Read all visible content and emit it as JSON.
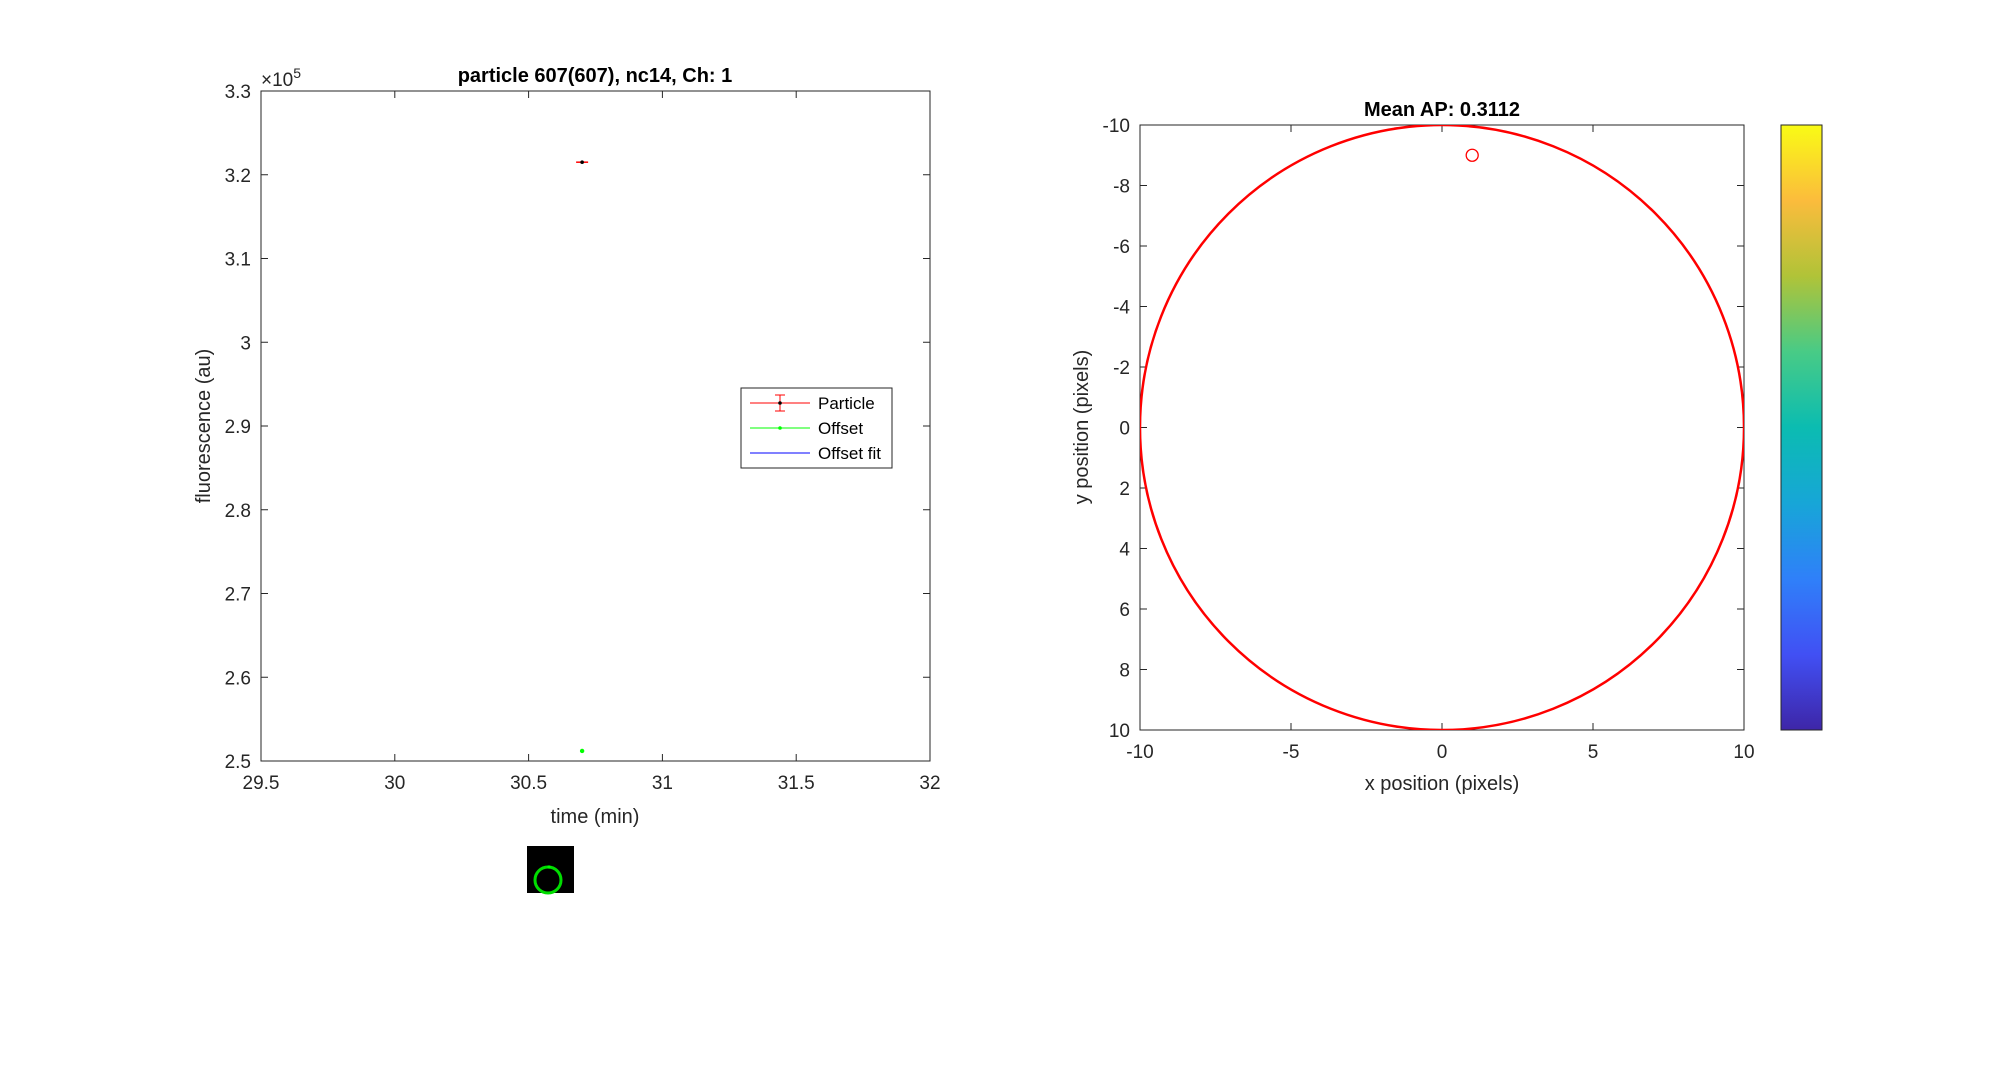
{
  "chart_data": [
    {
      "type": "scatter",
      "title": "particle 607(607), nc14, Ch: 1",
      "xlabel": "time (min)",
      "ylabel": "fluorescence (au)",
      "y_exponent_label": "×10",
      "y_exponent": "5",
      "xlim": [
        29.5,
        32
      ],
      "ylim": [
        2.5,
        3.3
      ],
      "xticks": [
        "29.5",
        "30",
        "30.5",
        "31",
        "31.5",
        "32"
      ],
      "yticks": [
        "2.5",
        "2.6",
        "2.7",
        "2.8",
        "2.9",
        "3",
        "3.1",
        "3.2",
        "3.3"
      ],
      "grid": false,
      "legend_position": "right",
      "series": [
        {
          "name": "Particle",
          "color": "#ff0000",
          "x": [
            30.7
          ],
          "y": [
            3.215
          ],
          "error": [
            0.001
          ]
        },
        {
          "name": "Offset",
          "color": "#00ff00",
          "x": [
            30.7
          ],
          "y": [
            2.512
          ]
        },
        {
          "name": "Offset fit",
          "color": "#0000ff",
          "x": [],
          "y": []
        }
      ]
    },
    {
      "type": "scatter",
      "title": "Mean AP: 0.3112",
      "xlabel": "x position (pixels)",
      "ylabel": "y position (pixels)",
      "xlim": [
        -10,
        10
      ],
      "ylim": [
        -10,
        10
      ],
      "y_reversed": true,
      "xticks": [
        "-10",
        "-5",
        "0",
        "5",
        "10"
      ],
      "yticks": [
        "-10",
        "-8",
        "-6",
        "-4",
        "-2",
        "0",
        "2",
        "4",
        "6",
        "8",
        "10"
      ],
      "grid": false,
      "colorbar": "parula",
      "nucleus_circle": {
        "cx": 0,
        "cy": 0,
        "r": 10,
        "color": "#ff0000"
      },
      "points": [
        {
          "x": 1,
          "y": -9,
          "color": "#ff0000"
        }
      ]
    }
  ],
  "thumbnail": {
    "background": "#000000",
    "ring_color": "#00dd00",
    "spot_color": "#00ff00"
  }
}
